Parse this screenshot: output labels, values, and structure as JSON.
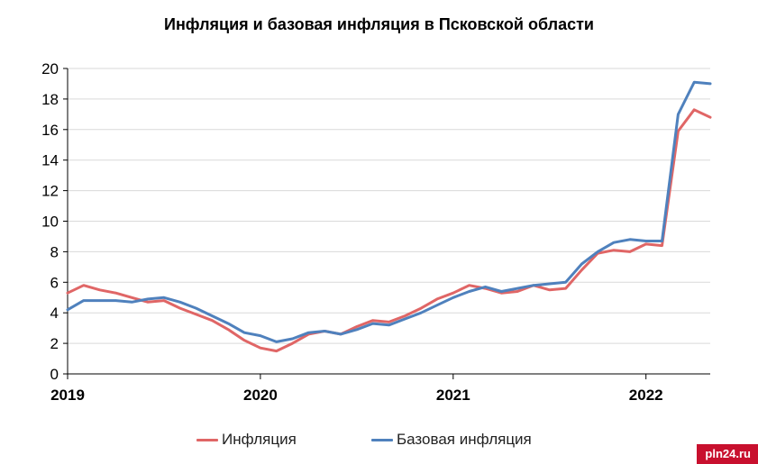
{
  "chart_data": {
    "type": "line",
    "title": "Инфляция и базовая инфляция в Псковской области",
    "xlabel": "",
    "ylabel": "",
    "ylim": [
      0,
      20
    ],
    "yticks": [
      0,
      2,
      4,
      6,
      8,
      10,
      12,
      14,
      16,
      18,
      20
    ],
    "xticks": [
      "2019",
      "2020",
      "2021",
      "2022"
    ],
    "xlim": [
      "2019-01",
      "2022-05"
    ],
    "grid": true,
    "legend_position": "bottom",
    "x": [
      "2019-01",
      "2019-02",
      "2019-03",
      "2019-04",
      "2019-05",
      "2019-06",
      "2019-07",
      "2019-08",
      "2019-09",
      "2019-10",
      "2019-11",
      "2019-12",
      "2020-01",
      "2020-02",
      "2020-03",
      "2020-04",
      "2020-05",
      "2020-06",
      "2020-07",
      "2020-08",
      "2020-09",
      "2020-10",
      "2020-11",
      "2020-12",
      "2021-01",
      "2021-02",
      "2021-03",
      "2021-04",
      "2021-05",
      "2021-06",
      "2021-07",
      "2021-08",
      "2021-09",
      "2021-10",
      "2021-11",
      "2021-12",
      "2022-01",
      "2022-02",
      "2022-03",
      "2022-04",
      "2022-05"
    ],
    "series": [
      {
        "name": "Инфляция",
        "color": "#e06666",
        "values": [
          5.3,
          5.8,
          5.5,
          5.3,
          5.0,
          4.7,
          4.8,
          4.3,
          3.9,
          3.5,
          2.9,
          2.2,
          1.7,
          1.5,
          2.0,
          2.6,
          2.8,
          2.6,
          3.1,
          3.5,
          3.4,
          3.8,
          4.3,
          4.9,
          5.3,
          5.8,
          5.6,
          5.3,
          5.4,
          5.8,
          5.5,
          5.6,
          6.8,
          7.9,
          8.1,
          8.0,
          8.5,
          8.4,
          15.9,
          17.3,
          16.8
        ]
      },
      {
        "name": "Базовая инфляция",
        "color": "#4f81bd",
        "values": [
          4.2,
          4.8,
          4.8,
          4.8,
          4.7,
          4.9,
          5.0,
          4.7,
          4.3,
          3.8,
          3.3,
          2.7,
          2.5,
          2.1,
          2.3,
          2.7,
          2.8,
          2.6,
          2.9,
          3.3,
          3.2,
          3.6,
          4.0,
          4.5,
          5.0,
          5.4,
          5.7,
          5.4,
          5.6,
          5.8,
          5.9,
          6.0,
          7.2,
          8.0,
          8.6,
          8.8,
          8.7,
          8.7,
          17.0,
          19.1,
          19.0
        ]
      }
    ]
  },
  "watermark": "pln24.ru"
}
